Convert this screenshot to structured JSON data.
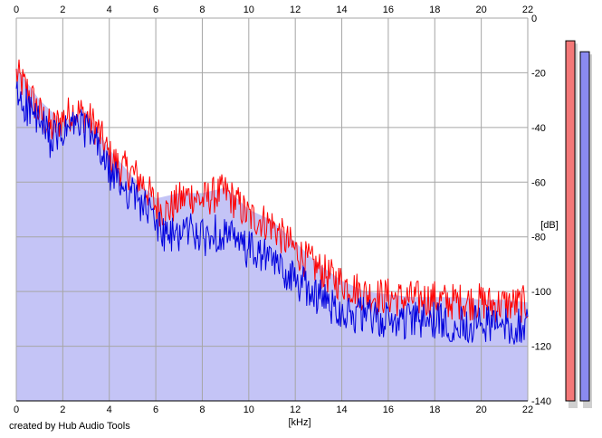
{
  "credit": "created by Hub Audio Tools",
  "colors": {
    "background": "#ffffff",
    "area_fill": "#c4c4f6",
    "grid": "#a6a6a6",
    "red_series": "#ff0000",
    "blue_series": "#0000dd",
    "meter_left": "#f47878",
    "meter_right": "#8a8af0"
  },
  "chart_data": {
    "type": "line",
    "title": "",
    "xlabel": "[kHz]",
    "ylabel": "[dB]",
    "xlim": [
      0,
      22
    ],
    "ylim": [
      -140,
      0
    ],
    "x_ticks": [
      "0",
      "2",
      "4",
      "6",
      "8",
      "10",
      "12",
      "14",
      "16",
      "18",
      "20",
      "22"
    ],
    "y_ticks": [
      "0",
      "-20",
      "-40",
      "-60",
      "-80",
      "-100",
      "-120",
      "-140"
    ],
    "grid": true,
    "series": [
      {
        "color": "#ff0000",
        "x": [
          0,
          0.5,
          1,
          1.5,
          2,
          2.5,
          3,
          3.5,
          4,
          4.5,
          5,
          5.5,
          6,
          6.5,
          7,
          7.5,
          8,
          8.5,
          9,
          9.5,
          10,
          10.5,
          11,
          11.5,
          12,
          12.5,
          13,
          13.5,
          14,
          14.5,
          15,
          15.5,
          16,
          16.5,
          17,
          17.5,
          18,
          18.5,
          19,
          19.5,
          20,
          20.5,
          21,
          21.5,
          22
        ],
        "y": [
          -20,
          -26,
          -34,
          -40,
          -36,
          -33,
          -35,
          -40,
          -50,
          -54,
          -56,
          -60,
          -68,
          -70,
          -66,
          -64,
          -66,
          -64,
          -63,
          -67,
          -72,
          -73,
          -75,
          -80,
          -84,
          -88,
          -91,
          -94,
          -96,
          -98,
          -100,
          -101,
          -101,
          -102,
          -102,
          -102,
          -102,
          -103,
          -103,
          -103,
          -103,
          -104,
          -104,
          -104,
          -104
        ]
      },
      {
        "color": "#0000dd",
        "x": [
          0,
          0.5,
          1,
          1.5,
          2,
          2.5,
          3,
          3.5,
          4,
          4.5,
          5,
          5.5,
          6,
          6.5,
          7,
          7.5,
          8,
          8.5,
          9,
          9.5,
          10,
          10.5,
          11,
          11.5,
          12,
          12.5,
          13,
          13.5,
          14,
          14.5,
          15,
          15.5,
          16,
          16.5,
          17,
          17.5,
          18,
          18.5,
          19,
          19.5,
          20,
          20.5,
          21,
          21.5,
          22
        ],
        "y": [
          -28,
          -32,
          -38,
          -44,
          -42,
          -38,
          -40,
          -46,
          -56,
          -60,
          -64,
          -68,
          -74,
          -80,
          -78,
          -76,
          -80,
          -78,
          -78,
          -82,
          -84,
          -86,
          -88,
          -92,
          -95,
          -98,
          -101,
          -104,
          -106,
          -108,
          -108,
          -110,
          -110,
          -110,
          -110,
          -110,
          -110,
          -111,
          -111,
          -111,
          -111,
          -111,
          -112,
          -112,
          -112
        ]
      }
    ],
    "area_envelope": {
      "x": [
        0,
        1,
        2,
        3,
        4,
        5,
        6,
        7,
        8,
        9,
        10,
        11,
        12,
        13,
        14,
        15,
        16,
        17,
        18,
        19,
        20,
        21,
        22
      ],
      "y": [
        -18,
        -30,
        -38,
        -34,
        -48,
        -58,
        -66,
        -64,
        -64,
        -62,
        -70,
        -74,
        -82,
        -90,
        -96,
        -100,
        -101,
        -102,
        -102,
        -102,
        -103,
        -103,
        -104
      ]
    },
    "level_meters": [
      {
        "channel": "left",
        "level_db": -4,
        "color": "#f47878"
      },
      {
        "channel": "right",
        "level_db": -8,
        "color": "#8a8af0"
      }
    ]
  }
}
